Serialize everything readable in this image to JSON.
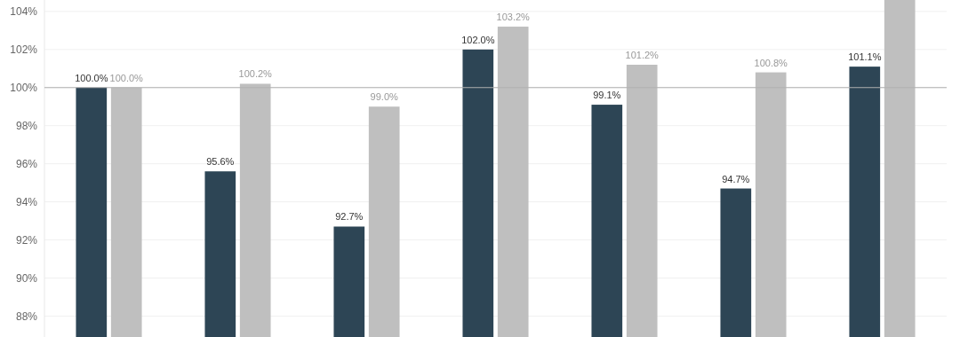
{
  "chart_data": {
    "type": "bar",
    "categories": [
      null,
      null,
      null,
      null,
      null,
      null,
      null
    ],
    "series": [
      {
        "color": "#2d4555",
        "values": [
          100.0,
          95.6,
          92.7,
          102.0,
          99.1,
          94.7,
          101.1
        ],
        "value_labels": [
          "100.0%",
          "95.6%",
          "92.7%",
          "102.0%",
          "99.1%",
          "94.7%",
          "101.1%"
        ]
      },
      {
        "color": "#bfbfbf",
        "values": [
          100.0,
          100.2,
          99.0,
          103.2,
          101.2,
          100.8,
          104.6
        ],
        "value_labels": [
          "100.0%",
          "100.2%",
          "99.0%",
          "103.2%",
          "101.2%",
          "100.8%",
          null
        ]
      }
    ],
    "ylim": [
      86.9,
      104.6
    ],
    "yticks": [
      {
        "value": 88,
        "label": "88%"
      },
      {
        "value": 90,
        "label": "90%"
      },
      {
        "value": 92,
        "label": "92%"
      },
      {
        "value": 94,
        "label": "94%"
      },
      {
        "value": 96,
        "label": "96%"
      },
      {
        "value": 98,
        "label": "98%"
      },
      {
        "value": 100,
        "label": "100%"
      },
      {
        "value": 102,
        "label": "102%"
      },
      {
        "value": 104,
        "label": "104%"
      }
    ],
    "grid": "y",
    "ref_lines": [
      {
        "axis": "y",
        "value": 100,
        "color": "#b0b0b0"
      }
    ]
  }
}
